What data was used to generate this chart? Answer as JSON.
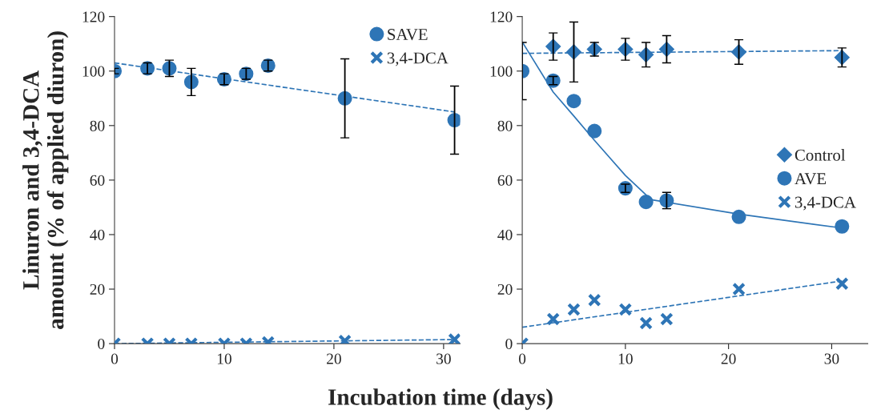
{
  "chart_data": [
    {
      "type": "scatter",
      "ylabel": "Linuron and 3,4-DCA\namount (% of applied diuron)",
      "xlabel": "Incubation time (days)",
      "xlim": [
        0,
        31.5
      ],
      "xticks": [
        0,
        10,
        20,
        30
      ],
      "ylim": [
        0,
        120
      ],
      "yticks": [
        0,
        20,
        40,
        60,
        80,
        100,
        120
      ],
      "grid": false,
      "legend": "top right",
      "series": [
        {
          "name": "SAVE",
          "type": "scatter",
          "marker": "circle",
          "color": "#2e75b6",
          "x": [
            0,
            3,
            5,
            7,
            10,
            12,
            14,
            21,
            31
          ],
          "values": [
            100,
            101,
            101,
            96,
            97,
            99,
            102,
            90,
            82
          ],
          "errors": [
            1,
            2,
            3,
            5,
            2,
            2,
            2,
            14.5,
            12.5
          ]
        },
        {
          "name": "3,4-DCA",
          "type": "scatter",
          "marker": "cross",
          "color": "#2e75b6",
          "x": [
            0,
            3,
            5,
            7,
            10,
            12,
            14,
            21,
            31
          ],
          "values": [
            0,
            0,
            0,
            0,
            0,
            0,
            0.5,
            1,
            1.5
          ]
        },
        {
          "type": "line",
          "line_style": "dashed",
          "color": "#2e75b6",
          "x": [
            0,
            31
          ],
          "values": [
            103,
            85
          ]
        },
        {
          "type": "line",
          "line_style": "dashed",
          "color": "#2e75b6",
          "x": [
            0,
            31
          ],
          "values": [
            0,
            1.5
          ]
        }
      ]
    },
    {
      "type": "scatter",
      "xlim": [
        0,
        33.5
      ],
      "xticks": [
        0,
        10,
        20,
        30
      ],
      "ylim": [
        0,
        120
      ],
      "yticks": [
        0,
        20,
        40,
        60,
        80,
        100,
        120
      ],
      "grid": false,
      "legend": "right",
      "series": [
        {
          "name": "Control",
          "type": "scatter",
          "marker": "diamond",
          "color": "#2e75b6",
          "x": [
            3,
            5,
            7,
            10,
            12,
            14,
            21,
            31
          ],
          "values": [
            109,
            107,
            108,
            108,
            106,
            108,
            107,
            105
          ],
          "errors": [
            5,
            11,
            2.5,
            4,
            4.5,
            5,
            4.5,
            3.5
          ]
        },
        {
          "name": "AVE",
          "type": "scatter",
          "marker": "circle",
          "color": "#2e75b6",
          "x": [
            0,
            3,
            5,
            7,
            10,
            12,
            14,
            21,
            31
          ],
          "values": [
            100,
            96.5,
            89,
            78,
            57,
            52,
            52.5,
            46.5,
            43
          ],
          "errors": [
            10.5,
            1.5,
            null,
            null,
            1.5,
            null,
            3,
            null,
            null
          ]
        },
        {
          "name": "3,4-DCA",
          "type": "scatter",
          "marker": "cross",
          "color": "#2e75b6",
          "x": [
            0,
            3,
            5,
            7,
            10,
            12,
            14,
            21,
            31
          ],
          "values": [
            0,
            9,
            12.5,
            16,
            12.5,
            7.5,
            9,
            20,
            22
          ]
        },
        {
          "type": "line",
          "line_style": "dashed",
          "color": "#2e75b6",
          "x": [
            0,
            31
          ],
          "values": [
            106.5,
            107.5
          ]
        },
        {
          "type": "line",
          "line_style": "solid",
          "color": "#2e75b6",
          "x": [
            0,
            3,
            5,
            7,
            10,
            12.5,
            21,
            31
          ],
          "values": [
            110.7,
            92.3,
            83.5,
            74.6,
            61.7,
            52.8,
            47.5,
            42.4
          ]
        },
        {
          "type": "line",
          "line_style": "dashed",
          "color": "#2e75b6",
          "x": [
            0,
            31
          ],
          "values": [
            6,
            23
          ]
        }
      ]
    }
  ]
}
